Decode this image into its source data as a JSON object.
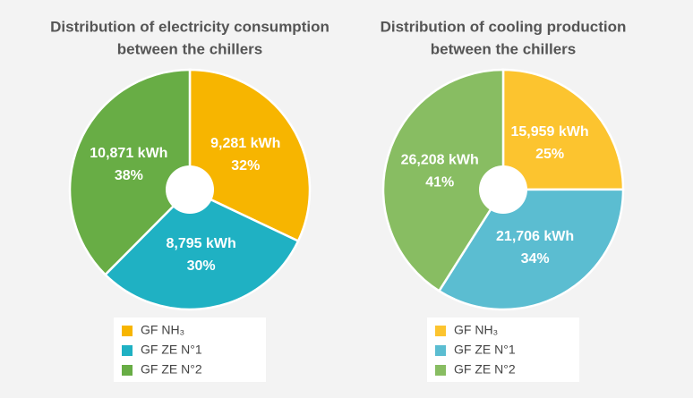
{
  "chart_data": [
    {
      "type": "donut",
      "title": [
        "Distribution of electricity consumption",
        "between the chillers"
      ],
      "labels": [
        "GF NH₃",
        "GF ZE N°1",
        "GF ZE N°2"
      ],
      "values": [
        9281,
        8795,
        10871
      ],
      "value_labels": [
        "9,281 kWh",
        "8,795 kWh",
        "10,871 kWh"
      ],
      "percent_labels": [
        "32%",
        "30%",
        "38%"
      ],
      "colors": [
        "#f7b500",
        "#1fb1c3",
        "#68ad45"
      ]
    },
    {
      "type": "donut",
      "title": [
        "Distribution of cooling production",
        "between the chillers"
      ],
      "labels": [
        "GF NH₃",
        "GF ZE N°1",
        "GF ZE N°2"
      ],
      "values": [
        15959,
        21706,
        26208
      ],
      "value_labels": [
        "15,959 kWh",
        "21,706 kWh",
        "26,208 kWh"
      ],
      "percent_labels": [
        "25%",
        "34%",
        "41%"
      ],
      "colors": [
        "#fcc42f",
        "#5bbdd1",
        "#88bd62"
      ]
    }
  ]
}
